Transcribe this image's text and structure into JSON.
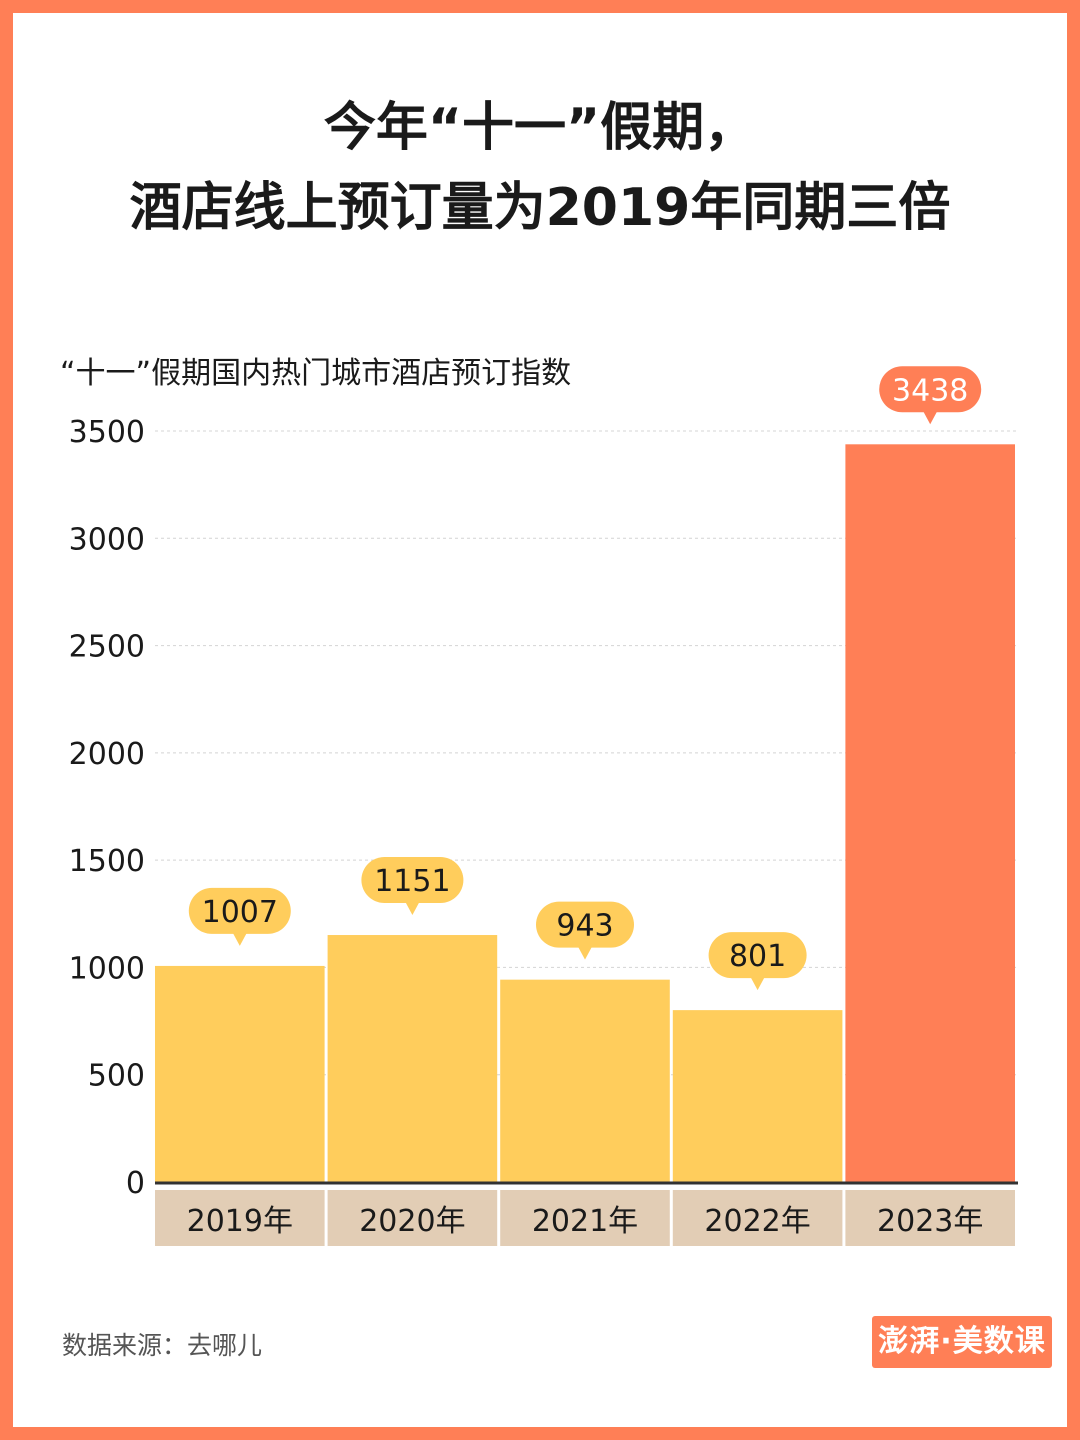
{
  "title_lines": [
    "今年“十一”假期，",
    "酒店线上预订量为2019年同期三倍"
  ],
  "source": "数据来源：去哪儿",
  "logo_text": "澎湃·美数课",
  "colors": {
    "background": "#FF7F56",
    "bar_default": "#FFCD5C",
    "bar_highlight": "#FF7F56",
    "category_band": "#E2CDB5",
    "label_default": "#FFCD5C",
    "label_highlight": "#FF7F56"
  },
  "chart_data": {
    "type": "bar",
    "title": "“十一”假期国内热门城市酒店预订指数",
    "categories": [
      "2019年",
      "2020年",
      "2021年",
      "2022年",
      "2023年"
    ],
    "values": [
      1007,
      1151,
      943,
      801,
      3438
    ],
    "ylim": [
      0,
      3500
    ],
    "yticks": [
      0,
      500,
      1000,
      1500,
      2000,
      2500,
      3000,
      3500
    ],
    "highlight_index": 4,
    "grid": true,
    "xlabel": "",
    "ylabel": ""
  }
}
